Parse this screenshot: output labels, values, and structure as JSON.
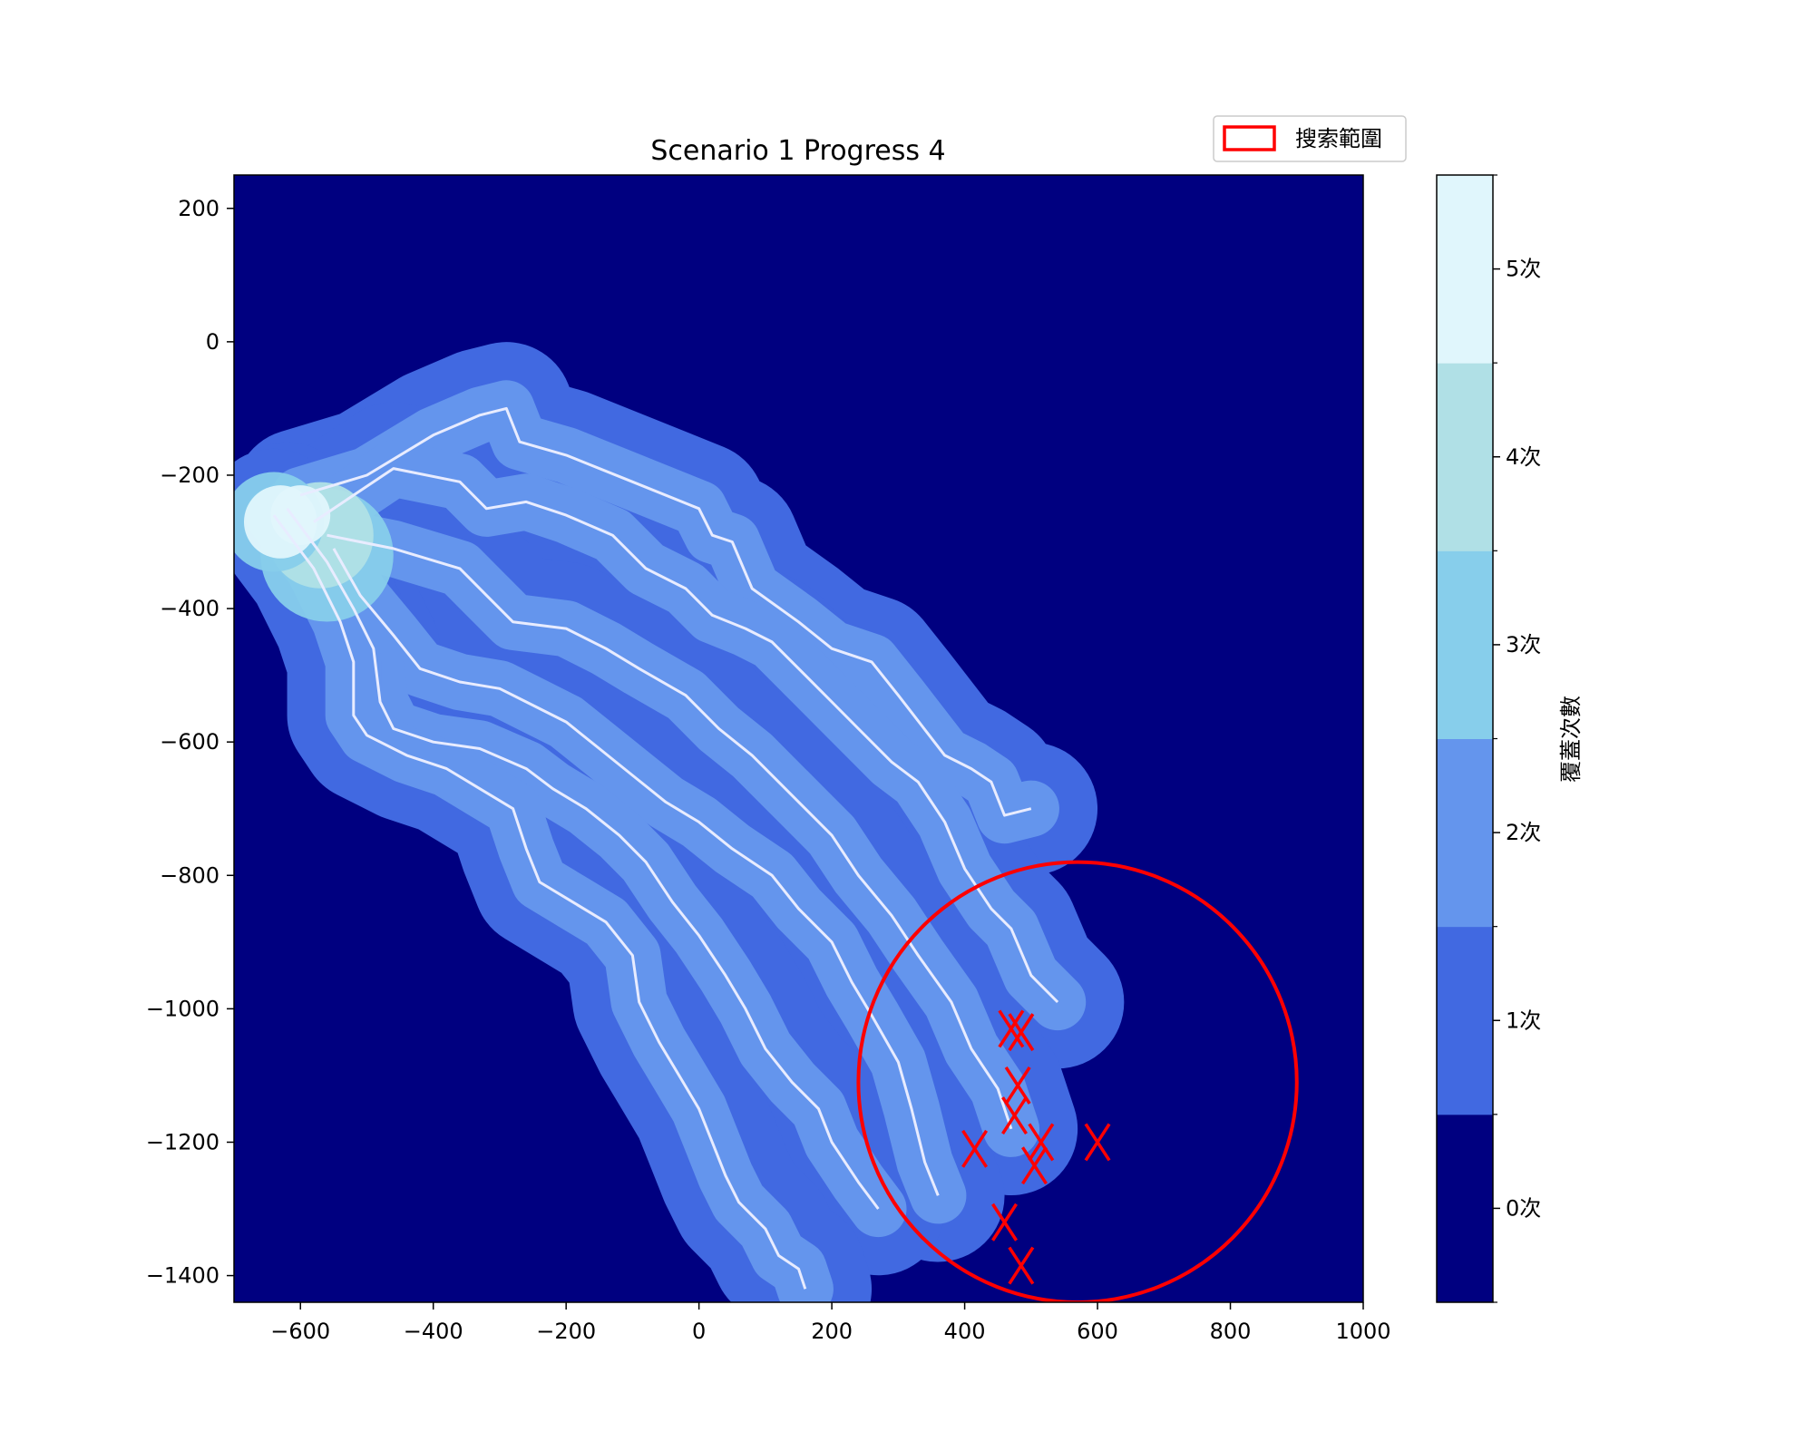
{
  "chart_data": {
    "type": "heatmap",
    "title": "Scenario 1 Progress 4",
    "xlabel": "",
    "ylabel": "",
    "xlim": [
      -700,
      1000
    ],
    "ylim": [
      -1440,
      250
    ],
    "x_ticks": [
      -600,
      -400,
      -200,
      0,
      200,
      400,
      600,
      800,
      1000
    ],
    "y_ticks": [
      200,
      0,
      -200,
      -400,
      -600,
      -800,
      -1000,
      -1200,
      -1400
    ],
    "x_tick_labels": [
      "−600",
      "−400",
      "−200",
      "0",
      "200",
      "400",
      "600",
      "800",
      "1000"
    ],
    "y_tick_labels": [
      "200",
      "0",
      "−200",
      "−400",
      "−600",
      "−800",
      "−1000",
      "−1200",
      "−1400"
    ],
    "grid": false,
    "background_color": "#000080",
    "coverage_radius": 100,
    "colorbar": {
      "label": "覆蓋次數",
      "levels": [
        {
          "label": "0次",
          "color": "#000080"
        },
        {
          "label": "1次",
          "color": "#4169e1"
        },
        {
          "label": "2次",
          "color": "#6495ed"
        },
        {
          "label": "3次",
          "color": "#87ceeb"
        },
        {
          "label": "4次",
          "color": "#b0e0e6"
        },
        {
          "label": "5次",
          "color": "#e0f6fc"
        }
      ]
    },
    "legend": {
      "placement": "top-right",
      "entries": [
        {
          "label": "搜索範圍",
          "color": "#ff0000"
        }
      ]
    },
    "search_area": {
      "center": [
        570,
        -1110
      ],
      "radius": 330,
      "color": "#ff0000"
    },
    "tracks": [
      {
        "color": "#e8ecff",
        "points": [
          [
            -600,
            -230
          ],
          [
            -500,
            -200
          ],
          [
            -400,
            -140
          ],
          [
            -330,
            -110
          ],
          [
            -290,
            -100
          ],
          [
            -270,
            -150
          ],
          [
            -200,
            -170
          ],
          [
            -100,
            -210
          ],
          [
            0,
            -250
          ],
          [
            20,
            -290
          ],
          [
            50,
            -300
          ],
          [
            80,
            -370
          ],
          [
            150,
            -420
          ],
          [
            200,
            -460
          ],
          [
            260,
            -480
          ],
          [
            300,
            -530
          ],
          [
            370,
            -620
          ],
          [
            410,
            -640
          ],
          [
            440,
            -660
          ],
          [
            460,
            -710
          ],
          [
            500,
            -700
          ]
        ]
      },
      {
        "color": "#e8ecff",
        "points": [
          [
            -580,
            -270
          ],
          [
            -460,
            -190
          ],
          [
            -360,
            -210
          ],
          [
            -320,
            -250
          ],
          [
            -260,
            -240
          ],
          [
            -200,
            -260
          ],
          [
            -130,
            -290
          ],
          [
            -80,
            -340
          ],
          [
            -20,
            -370
          ],
          [
            20,
            -410
          ],
          [
            70,
            -430
          ],
          [
            110,
            -450
          ],
          [
            160,
            -500
          ],
          [
            200,
            -540
          ],
          [
            240,
            -580
          ],
          [
            290,
            -630
          ],
          [
            330,
            -660
          ],
          [
            370,
            -720
          ],
          [
            400,
            -790
          ],
          [
            440,
            -850
          ],
          [
            470,
            -880
          ],
          [
            500,
            -950
          ],
          [
            540,
            -990
          ]
        ]
      },
      {
        "color": "#e8ecff",
        "points": [
          [
            -560,
            -290
          ],
          [
            -460,
            -310
          ],
          [
            -360,
            -340
          ],
          [
            -320,
            -380
          ],
          [
            -280,
            -420
          ],
          [
            -200,
            -430
          ],
          [
            -140,
            -460
          ],
          [
            -90,
            -490
          ],
          [
            -20,
            -530
          ],
          [
            30,
            -580
          ],
          [
            80,
            -620
          ],
          [
            120,
            -660
          ],
          [
            160,
            -700
          ],
          [
            200,
            -740
          ],
          [
            240,
            -800
          ],
          [
            290,
            -860
          ],
          [
            330,
            -920
          ],
          [
            380,
            -990
          ],
          [
            410,
            -1060
          ],
          [
            450,
            -1120
          ],
          [
            470,
            -1180
          ]
        ]
      },
      {
        "color": "#e8ecff",
        "points": [
          [
            -550,
            -310
          ],
          [
            -510,
            -380
          ],
          [
            -460,
            -440
          ],
          [
            -420,
            -490
          ],
          [
            -360,
            -510
          ],
          [
            -300,
            -520
          ],
          [
            -260,
            -540
          ],
          [
            -200,
            -570
          ],
          [
            -150,
            -610
          ],
          [
            -100,
            -650
          ],
          [
            -50,
            -690
          ],
          [
            0,
            -720
          ],
          [
            50,
            -760
          ],
          [
            110,
            -800
          ],
          [
            150,
            -850
          ],
          [
            200,
            -900
          ],
          [
            230,
            -960
          ],
          [
            260,
            -1010
          ],
          [
            300,
            -1080
          ],
          [
            320,
            -1150
          ],
          [
            340,
            -1230
          ],
          [
            360,
            -1280
          ]
        ]
      },
      {
        "color": "#e8ecff",
        "points": [
          [
            -620,
            -250
          ],
          [
            -560,
            -330
          ],
          [
            -520,
            -400
          ],
          [
            -490,
            -460
          ],
          [
            -480,
            -540
          ],
          [
            -460,
            -580
          ],
          [
            -400,
            -600
          ],
          [
            -330,
            -610
          ],
          [
            -260,
            -640
          ],
          [
            -220,
            -670
          ],
          [
            -170,
            -700
          ],
          [
            -120,
            -740
          ],
          [
            -80,
            -780
          ],
          [
            -40,
            -840
          ],
          [
            0,
            -890
          ],
          [
            40,
            -950
          ],
          [
            70,
            -1000
          ],
          [
            100,
            -1060
          ],
          [
            140,
            -1110
          ],
          [
            180,
            -1150
          ],
          [
            200,
            -1200
          ],
          [
            240,
            -1260
          ],
          [
            270,
            -1300
          ]
        ]
      },
      {
        "color": "#e8ecff",
        "points": [
          [
            -640,
            -260
          ],
          [
            -580,
            -340
          ],
          [
            -540,
            -420
          ],
          [
            -520,
            -480
          ],
          [
            -520,
            -560
          ],
          [
            -500,
            -590
          ],
          [
            -440,
            -620
          ],
          [
            -380,
            -640
          ],
          [
            -330,
            -670
          ],
          [
            -280,
            -700
          ],
          [
            -260,
            -760
          ],
          [
            -240,
            -810
          ],
          [
            -190,
            -840
          ],
          [
            -140,
            -870
          ],
          [
            -100,
            -920
          ],
          [
            -90,
            -990
          ],
          [
            -60,
            -1050
          ],
          [
            -30,
            -1100
          ],
          [
            0,
            -1150
          ],
          [
            20,
            -1200
          ],
          [
            40,
            -1250
          ],
          [
            60,
            -1290
          ],
          [
            100,
            -1330
          ],
          [
            120,
            -1370
          ],
          [
            150,
            -1390
          ],
          [
            160,
            -1420
          ]
        ]
      }
    ],
    "targets": [
      {
        "x": 470,
        "y": -1030
      },
      {
        "x": 485,
        "y": -1035
      },
      {
        "x": 480,
        "y": -1115
      },
      {
        "x": 475,
        "y": -1160
      },
      {
        "x": 415,
        "y": -1210
      },
      {
        "x": 515,
        "y": -1200
      },
      {
        "x": 505,
        "y": -1235
      },
      {
        "x": 600,
        "y": -1200
      },
      {
        "x": 460,
        "y": -1320
      },
      {
        "x": 485,
        "y": -1385
      }
    ]
  }
}
